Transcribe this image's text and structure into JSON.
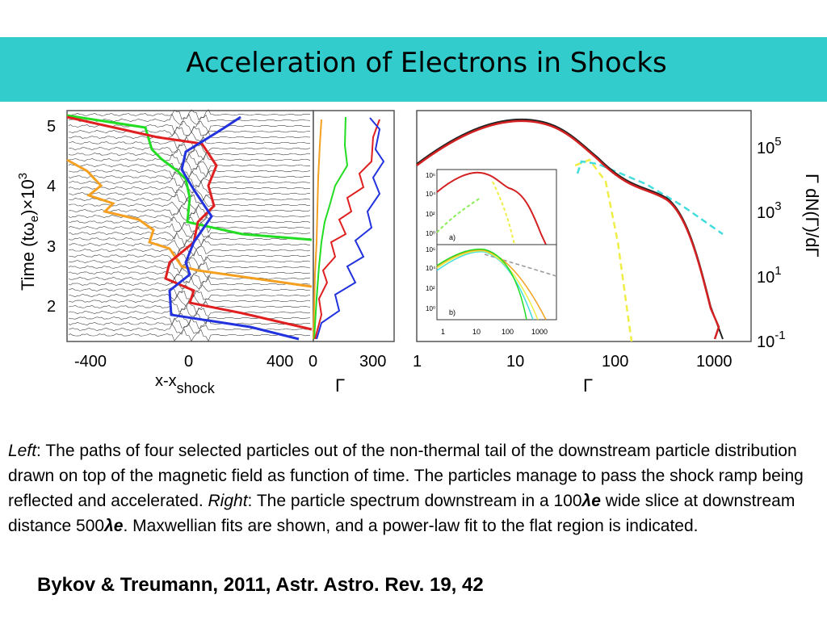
{
  "slide": {
    "title": "Acceleration of Electrons in Shocks",
    "header_color": "#33cccc"
  },
  "caption": {
    "left_label": "Left",
    "left_text": ": The paths of four selected particles out of the non-thermal tail of the downstream particle distribution drawn on top of the magnetic field as function of time. The particles manage to pass the shock ramp being reflected and accelerated. ",
    "right_label": "Right",
    "right_text_1": ": The particle spectrum downstream in a 100",
    "lambda_e_1": "λe",
    "right_text_2": " wide slice at downstream distance 500",
    "lambda_e_2": "λe",
    "right_text_3": ". Maxwellian fits are shown, and a power-law fit to the flat region is indicated."
  },
  "reference": "Bykov & Treumann, 2011, Astr. Astro. Rev. 19, 42",
  "figure": {
    "left_panel": {
      "ylabel_main": "Time  (tω",
      "ylabel_sub": "e",
      "ylabel_end": ")×10",
      "ylabel_sup": "3",
      "xlabel_main": "x-x",
      "xlabel_sub": "shock",
      "yticks": [
        "5",
        "4",
        "3",
        "2"
      ],
      "xticks": [
        "-400",
        "0",
        "400"
      ],
      "traj_colors": {
        "green": "#22dd22",
        "orange": "#f5a020",
        "red": "#e02020",
        "blue": "#2233dd"
      }
    },
    "middle_panel": {
      "xlabel": "Γ",
      "xticks": [
        "0",
        "300"
      ]
    },
    "right_panel": {
      "xlabel": "Γ",
      "ylabel": "Γ dN(Γ)/dΓ",
      "xticks": [
        "1",
        "10",
        "100",
        "1000"
      ],
      "yticks": [
        {
          "base": "10",
          "exp": "5"
        },
        {
          "base": "10",
          "exp": "3"
        },
        {
          "base": "10",
          "exp": "1"
        },
        {
          "base": "10",
          "exp": "-1"
        }
      ],
      "curve_colors": {
        "spectrum": "#d42020",
        "fit": "#222222",
        "maxwell": "#eeee44",
        "powerlaw": "#44dddd"
      },
      "inset_a": {
        "label": "a)",
        "yticks": [
          "10⁶",
          "10⁴",
          "10²",
          "10⁰"
        ]
      },
      "inset_b": {
        "label": "b)",
        "yticks": [
          "10⁶",
          "10⁴",
          "10²",
          "10⁰"
        ],
        "xticks": [
          "1",
          "10",
          "100",
          "1000"
        ]
      }
    }
  }
}
